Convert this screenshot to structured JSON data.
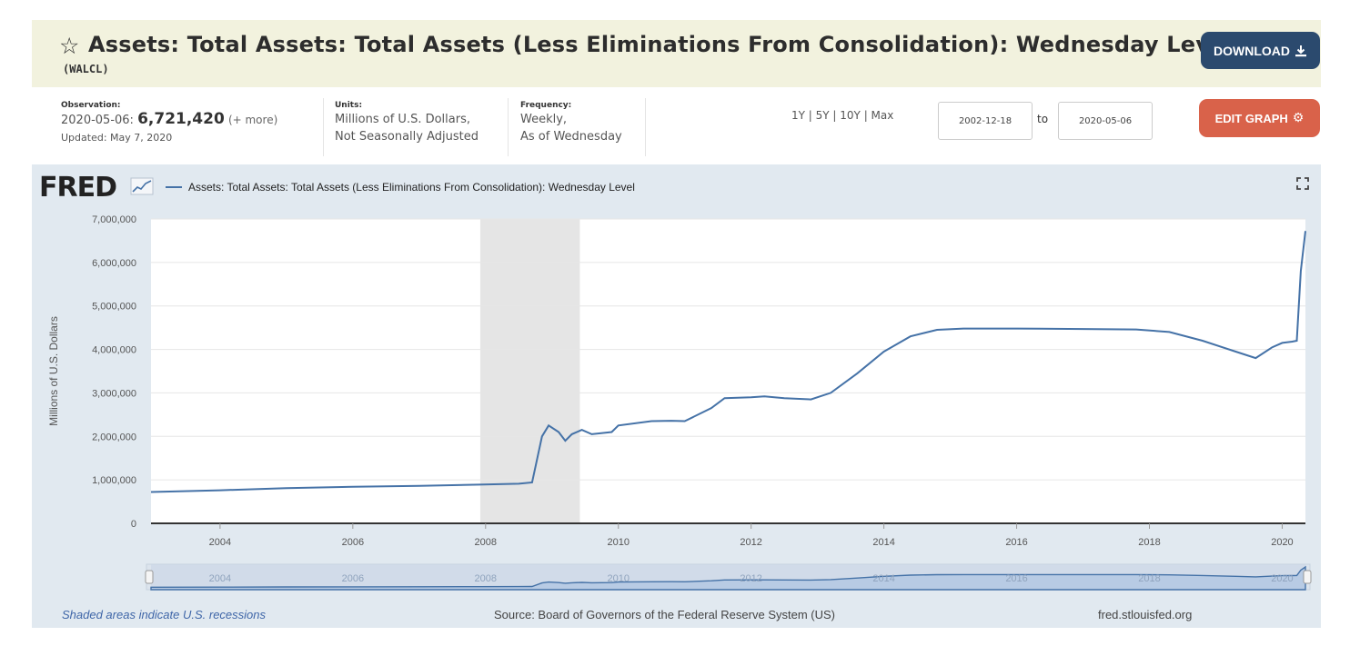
{
  "header": {
    "title": "Assets: Total Assets: Total Assets (Less Eliminations From Consolidation): Wednesday Level",
    "series_id": "(WALCL)",
    "download_label": "DOWNLOAD",
    "star_icon": "star-outline-icon",
    "download_icon": "download-icon"
  },
  "meta": {
    "observation_label": "Observation:",
    "observation_date": "2020-05-06:",
    "observation_value": "6,721,420",
    "observation_more": "(+ more)",
    "updated": "Updated: May 7, 2020",
    "units_label": "Units:",
    "units_line1": "Millions of U.S. Dollars,",
    "units_line2": "Not Seasonally Adjusted",
    "frequency_label": "Frequency:",
    "frequency_line1": "Weekly,",
    "frequency_line2": "As of Wednesday"
  },
  "controls": {
    "ranges": "1Y | 5Y | 10Y | Max",
    "date_from": "2002-12-18",
    "to_label": "to",
    "date_to": "2020-05-06",
    "edit_label": "EDIT GRAPH",
    "edit_icon": "gear-icon"
  },
  "chart_panel": {
    "logo": "FRED",
    "expand_icon": "fullscreen-icon",
    "footer_left": "Shaded areas indicate U.S. recessions",
    "footer_source": "Source: Board of Governors of the Federal Reserve System (US)",
    "footer_site": "fred.stlouisfed.org",
    "colors": {
      "series": "#4572a7",
      "recession": "#e5e5e5",
      "panel": "#e1e9f0",
      "navigator": "#b8cbe4"
    }
  },
  "chart_data": {
    "type": "line",
    "title": "",
    "xlabel": "",
    "ylabel": "Millions of U.S. Dollars",
    "xlim": [
      2002.96,
      2020.35
    ],
    "ylim": [
      0,
      7000000
    ],
    "x_ticks": [
      2004,
      2006,
      2008,
      2010,
      2012,
      2014,
      2016,
      2018,
      2020
    ],
    "y_ticks": [
      0,
      1000000,
      2000000,
      3000000,
      4000000,
      5000000,
      6000000,
      7000000
    ],
    "y_tick_labels": [
      "0",
      "1,000,000",
      "2,000,000",
      "3,000,000",
      "4,000,000",
      "5,000,000",
      "6,000,000",
      "7,000,000"
    ],
    "grid": true,
    "recessions": [
      [
        2007.92,
        2009.42
      ]
    ],
    "navigator_ticks": [
      "2004",
      "2006",
      "2008",
      "2010",
      "2012",
      "2014",
      "2016",
      "2018",
      "2020"
    ],
    "series": [
      {
        "name": "Assets: Total Assets: Total Assets (Less Eliminations From Consolidation): Wednesday Level",
        "x": [
          2002.96,
          2004.0,
          2005.0,
          2006.0,
          2007.0,
          2007.9,
          2008.5,
          2008.7,
          2008.85,
          2008.95,
          2009.1,
          2009.2,
          2009.3,
          2009.45,
          2009.6,
          2009.9,
          2010.0,
          2010.5,
          2010.8,
          2011.0,
          2011.4,
          2011.6,
          2012.0,
          2012.2,
          2012.5,
          2012.9,
          2013.2,
          2013.6,
          2014.0,
          2014.4,
          2014.8,
          2015.2,
          2016.0,
          2017.0,
          2017.8,
          2018.3,
          2018.8,
          2019.3,
          2019.6,
          2019.85,
          2020.0,
          2020.15,
          2020.22,
          2020.28,
          2020.35
        ],
        "y": [
          720000,
          760000,
          810000,
          840000,
          860000,
          890000,
          910000,
          940000,
          2000000,
          2250000,
          2100000,
          1900000,
          2050000,
          2150000,
          2050000,
          2100000,
          2250000,
          2350000,
          2360000,
          2350000,
          2650000,
          2880000,
          2900000,
          2920000,
          2880000,
          2850000,
          3000000,
          3450000,
          3950000,
          4300000,
          4450000,
          4480000,
          4480000,
          4470000,
          4460000,
          4400000,
          4200000,
          3950000,
          3800000,
          4050000,
          4150000,
          4180000,
          4200000,
          5800000,
          6721420
        ]
      }
    ]
  }
}
